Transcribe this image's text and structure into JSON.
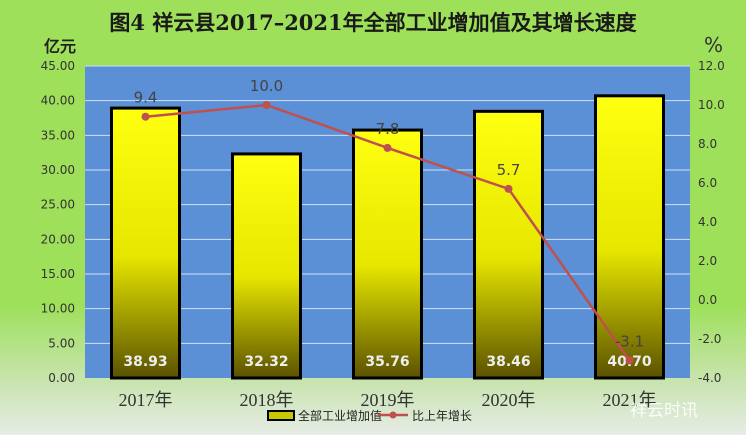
{
  "chart_data": {
    "type": "bar+line",
    "title": "图4  祥云县2017–2021年全部工业增加值及其增长速度",
    "ylabel": "亿元",
    "y2label": "%",
    "categories": [
      "2017年",
      "2018年",
      "2019年",
      "2020年",
      "2021年"
    ],
    "ylim": [
      0,
      45
    ],
    "y2lim": [
      -4,
      12
    ],
    "yticks": [
      "0.00",
      "5.00",
      "10.00",
      "15.00",
      "20.00",
      "25.00",
      "30.00",
      "35.00",
      "40.00",
      "45.00"
    ],
    "y2ticks": [
      "-4.0",
      "-2.0",
      "0.0",
      "2.0",
      "4.0",
      "6.0",
      "8.0",
      "10.0",
      "12.0"
    ],
    "grid": true,
    "legend": "bottom",
    "series": [
      {
        "name": "全部工业增加值",
        "type": "bar",
        "values": [
          38.93,
          32.32,
          35.76,
          38.46,
          40.7
        ],
        "labels": [
          "38.93",
          "32.32",
          "35.76",
          "38.46",
          "40.70"
        ],
        "color": "#ffff00"
      },
      {
        "name": "比上年增长",
        "type": "line",
        "axis": "right",
        "values": [
          9.4,
          10.0,
          7.8,
          5.7,
          -3.1
        ],
        "labels": [
          "9.4",
          "10.0",
          "7.8",
          "5.7",
          "-3.1"
        ],
        "color": "#c0504d"
      }
    ],
    "plot_bg": "#5b8fd6"
  },
  "watermark": "祥云时讯"
}
